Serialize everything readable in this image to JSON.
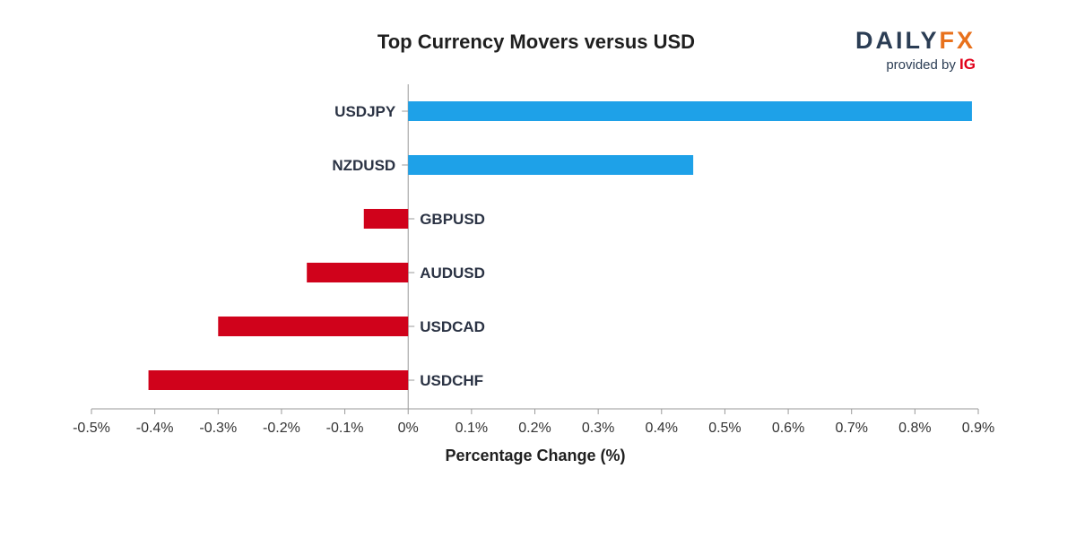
{
  "chart_data": {
    "type": "bar",
    "orientation": "horizontal",
    "title": "Top Currency Movers versus USD",
    "xlabel": "Percentage Change (%)",
    "ylabel": "",
    "xlim": [
      -0.5,
      0.9
    ],
    "tick_values": [
      -0.5,
      -0.4,
      -0.3,
      -0.2,
      -0.1,
      0,
      0.1,
      0.2,
      0.3,
      0.4,
      0.5,
      0.6,
      0.7,
      0.8,
      0.9
    ],
    "tick_labels": [
      "-0.5%",
      "-0.4%",
      "-0.3%",
      "-0.2%",
      "-0.1%",
      "0%",
      "0.1%",
      "0.2%",
      "0.3%",
      "0.4%",
      "0.5%",
      "0.6%",
      "0.7%",
      "0.8%",
      "0.9%"
    ],
    "categories": [
      "USDJPY",
      "NZDUSD",
      "GBPUSD",
      "AUDUSD",
      "USDCAD",
      "USDCHF"
    ],
    "values": [
      0.89,
      0.45,
      -0.07,
      -0.16,
      -0.3,
      -0.41
    ],
    "positive_color": "#1ea1e8",
    "negative_color": "#d0021b"
  },
  "branding": {
    "wordmark_part1": "DAILY",
    "wordmark_part2": "FX",
    "tagline": "provided by",
    "tagline_brand": "IG"
  }
}
